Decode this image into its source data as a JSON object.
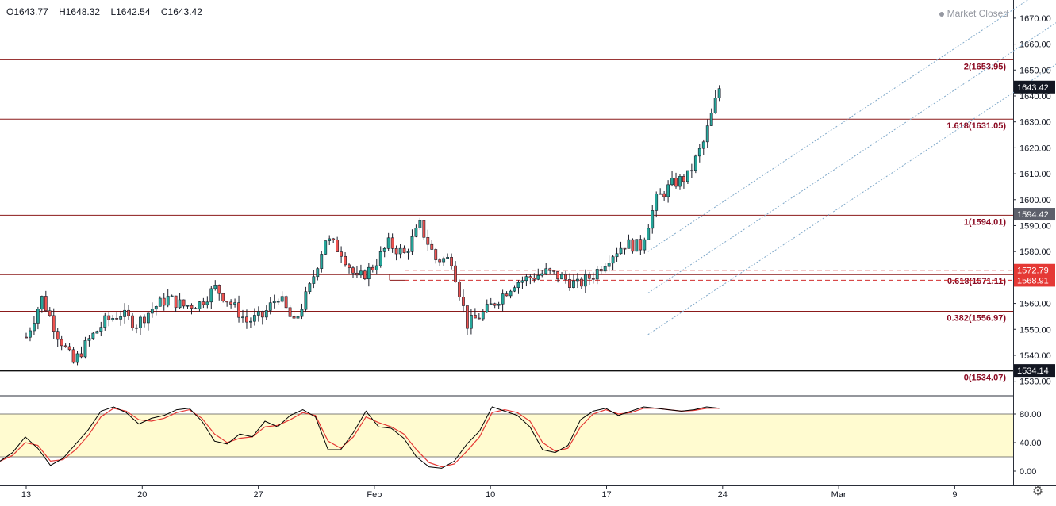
{
  "ohlc": {
    "open": "O1643.77",
    "high": "H1648.32",
    "low": "L1642.54",
    "close": "C1643.42"
  },
  "status": "Market Closed",
  "colors": {
    "up": "#26a69a",
    "down": "#ef5350",
    "fib": "#8b1a1a",
    "fib_label": "#8b0a22",
    "channel": "#7fa8c9",
    "stoch_k": "#000000",
    "stoch_d": "#e53935",
    "stoch_band": "#fffbd0"
  },
  "price_badges": [
    {
      "label": "1643.42",
      "value": 1643.42,
      "style": "dark"
    },
    {
      "label": "1594.42",
      "value": 1594.42,
      "style": "gray"
    },
    {
      "label": "1572.79",
      "value": 1572.79,
      "style": "red"
    },
    {
      "label": "1568.91",
      "value": 1568.91,
      "style": "red"
    },
    {
      "label": "1534.14",
      "value": 1534.14,
      "style": "dark"
    }
  ],
  "chart_data": {
    "type": "candlestick",
    "price_axis": {
      "min": 1525,
      "max": 1677,
      "ticks": [
        1530,
        1540,
        1550,
        1560,
        1570,
        1580,
        1590,
        1600,
        1610,
        1620,
        1630,
        1640,
        1650,
        1660,
        1670
      ],
      "tick_labels": [
        "1530.00",
        "1540.00",
        "1550.00",
        "1560.00",
        "1570.00",
        "1580.00",
        "1590.00",
        "1600.00",
        "1610.00",
        "1620.00",
        "1630.00",
        "1640.00",
        "1650.00",
        "1660.00",
        "1670.00"
      ]
    },
    "x_axis": {
      "labels": [
        "13",
        "20",
        "27",
        "Feb",
        "10",
        "17",
        "24",
        "Mar",
        "9"
      ],
      "label_index": [
        0,
        7,
        14,
        21,
        28,
        35,
        42,
        49,
        56
      ],
      "total_slots": 63
    },
    "fib_levels": [
      {
        "ratio": "2",
        "value": 1653.95,
        "label": "2(1653.95)"
      },
      {
        "ratio": "1.618",
        "value": 1631.05,
        "label": "1.618(1631.05)"
      },
      {
        "ratio": "1",
        "value": 1594.01,
        "label": "1(1594.01)"
      },
      {
        "ratio": "0.618",
        "value": 1571.11,
        "label": "0.618(1571.11)"
      },
      {
        "ratio": "0.382",
        "value": 1556.97,
        "label": "0.382(1556.97)"
      },
      {
        "ratio": "0",
        "value": 1534.07,
        "label": "0(1534.07)"
      }
    ],
    "dashed_levels": [
      1572.79,
      1568.91
    ],
    "candles_per_slot": 4,
    "close_path": [
      1547,
      1562,
      1548,
      1537,
      1546,
      1553,
      1556,
      1552,
      1558,
      1562,
      1559,
      1560,
      1566,
      1560,
      1553,
      1555,
      1563,
      1552,
      1566,
      1585,
      1580,
      1569,
      1574,
      1583,
      1579,
      1590,
      1577,
      1577,
      1552,
      1556,
      1562,
      1568,
      1570,
      1572,
      1570,
      1567,
      1571,
      1578,
      1583,
      1582,
      1600,
      1606,
      1609,
      1622,
      1643
    ],
    "channel": {
      "x1": 37.5,
      "y1": 1548,
      "x2": 63,
      "y2": 1656,
      "offsets": [
        0,
        16,
        32
      ]
    },
    "stochastic": {
      "axis": {
        "min": 0,
        "max": 100,
        "ticks": [
          0,
          40,
          80
        ],
        "tick_labels": [
          "0.00",
          "40.00",
          "80.00"
        ]
      },
      "band": [
        20,
        80
      ],
      "k": [
        14,
        26,
        48,
        32,
        8,
        18,
        38,
        58,
        84,
        90,
        82,
        66,
        74,
        78,
        86,
        88,
        70,
        42,
        38,
        52,
        48,
        70,
        62,
        78,
        86,
        76,
        30,
        30,
        54,
        84,
        62,
        60,
        46,
        20,
        6,
        4,
        14,
        38,
        56,
        90,
        84,
        78,
        62,
        30,
        26,
        36,
        72,
        84,
        88,
        78,
        84,
        90,
        88,
        86,
        84,
        86,
        90,
        88
      ],
      "d": [
        14,
        22,
        40,
        36,
        14,
        16,
        30,
        50,
        76,
        88,
        84,
        72,
        70,
        74,
        82,
        86,
        74,
        52,
        40,
        46,
        48,
        62,
        64,
        72,
        82,
        78,
        42,
        32,
        48,
        76,
        68,
        62,
        52,
        30,
        12,
        6,
        10,
        28,
        48,
        82,
        86,
        82,
        70,
        40,
        28,
        32,
        62,
        80,
        86,
        80,
        82,
        88,
        88,
        86,
        84,
        85,
        88,
        88
      ]
    }
  }
}
